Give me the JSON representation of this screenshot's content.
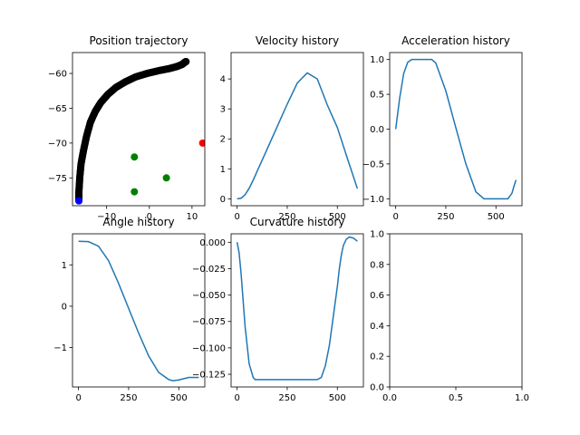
{
  "chart_data": [
    {
      "type": "scatter",
      "title": "Position trajectory",
      "xlim": [
        -18,
        13
      ],
      "ylim": [
        -79,
        -57
      ],
      "xticks": [
        -10,
        0,
        10
      ],
      "xtick_labels": [
        "−10",
        "0",
        "10"
      ],
      "yticks": [
        -75,
        -70,
        -65,
        -60
      ],
      "ytick_labels": [
        "−75",
        "−70",
        "−65",
        "−60"
      ],
      "series": [
        {
          "color": "#000000",
          "points": [
            [
              -16.5,
              -78.3
            ],
            [
              -16.5,
              -77
            ],
            [
              -16.3,
              -75
            ],
            [
              -16,
              -73
            ],
            [
              -15.4,
              -71
            ],
            [
              -14.7,
              -69
            ],
            [
              -13.8,
              -67
            ],
            [
              -12.7,
              -65.5
            ],
            [
              -11.4,
              -64.2
            ],
            [
              -9.7,
              -63
            ],
            [
              -7.8,
              -62
            ],
            [
              -5.6,
              -61.2
            ],
            [
              -3.2,
              -60.5
            ],
            [
              -0.5,
              -60
            ],
            [
              2.2,
              -59.6
            ],
            [
              4.7,
              -59.3
            ],
            [
              6.5,
              -59
            ],
            [
              7.7,
              -58.7
            ],
            [
              8.3,
              -58.4
            ],
            [
              8.6,
              -58.3
            ]
          ]
        },
        {
          "color": "#ff0000",
          "points": [
            [
              12.5,
              -70
            ]
          ]
        },
        {
          "color": "#008000",
          "points": [
            [
              -3.5,
              -72
            ],
            [
              -3.5,
              -77
            ],
            [
              4,
              -75
            ]
          ]
        },
        {
          "color": "#0000ff",
          "points": [
            [
              -16.5,
              -78.3
            ]
          ]
        }
      ]
    },
    {
      "type": "line",
      "title": "Velocity history",
      "xlim": [
        -30,
        630
      ],
      "ylim": [
        -0.23,
        4.88
      ],
      "xticks": [
        0,
        250,
        500
      ],
      "xtick_labels": [
        "0",
        "250",
        "500"
      ],
      "yticks": [
        0,
        1,
        2,
        3,
        4
      ],
      "ytick_labels": [
        "0",
        "1",
        "2",
        "3",
        "4"
      ],
      "x": [
        0,
        20,
        40,
        60,
        80,
        100,
        150,
        200,
        250,
        300,
        320,
        350,
        400,
        450,
        500,
        550,
        600
      ],
      "y": [
        0.0,
        0.02,
        0.14,
        0.35,
        0.62,
        0.92,
        1.66,
        2.41,
        3.16,
        3.86,
        4.0,
        4.2,
        4.0,
        3.13,
        2.38,
        1.35,
        0.34
      ]
    },
    {
      "type": "line",
      "title": "Acceleration history",
      "xlim": [
        -30,
        630
      ],
      "ylim": [
        -1.1,
        1.1
      ],
      "xticks": [
        0,
        250,
        500
      ],
      "xtick_labels": [
        "0",
        "250",
        "500"
      ],
      "yticks": [
        -1.0,
        -0.5,
        0.0,
        0.5,
        1.0
      ],
      "ytick_labels": [
        "−1.0",
        "−0.5",
        "0.0",
        "0.5",
        "1.0"
      ],
      "x": [
        0,
        20,
        40,
        60,
        80,
        100,
        150,
        180,
        200,
        250,
        300,
        350,
        400,
        440,
        480,
        520,
        560,
        580,
        590,
        600
      ],
      "y": [
        0.0,
        0.45,
        0.8,
        0.96,
        1.0,
        1.0,
        1.0,
        1.0,
        0.95,
        0.55,
        0.02,
        -0.5,
        -0.9,
        -1.0,
        -1.0,
        -1.0,
        -1.0,
        -0.92,
        -0.82,
        -0.73
      ]
    },
    {
      "type": "line",
      "title": "Angle history",
      "xlim": [
        -30,
        630
      ],
      "ylim": [
        -1.95,
        1.75
      ],
      "xticks": [
        0,
        250,
        500
      ],
      "xtick_labels": [
        "0",
        "250",
        "500"
      ],
      "yticks": [
        -1,
        0,
        1
      ],
      "ytick_labels": [
        "−1",
        "0",
        "1"
      ],
      "x": [
        0,
        50,
        100,
        150,
        200,
        250,
        300,
        350,
        400,
        450,
        470,
        500,
        550,
        600
      ],
      "y": [
        1.57,
        1.56,
        1.45,
        1.1,
        0.55,
        -0.05,
        -0.65,
        -1.2,
        -1.6,
        -1.77,
        -1.8,
        -1.78,
        -1.72,
        -1.72
      ]
    },
    {
      "type": "line",
      "title": "Curvature history",
      "xlim": [
        -30,
        630
      ],
      "ylim": [
        -0.137,
        0.008
      ],
      "xticks": [
        0,
        250,
        500
      ],
      "xtick_labels": [
        "0",
        "250",
        "500"
      ],
      "yticks": [
        -0.125,
        -0.1,
        -0.075,
        -0.05,
        -0.025,
        0.0
      ],
      "ytick_labels": [
        "−0.125",
        "−0.100",
        "−0.075",
        "−0.050",
        "−0.025",
        "0.000"
      ],
      "x": [
        0,
        10,
        20,
        40,
        60,
        80,
        90,
        100,
        200,
        300,
        400,
        420,
        440,
        460,
        480,
        500,
        510,
        520,
        530,
        545,
        560,
        580,
        600
      ],
      "y": [
        0.0,
        -0.01,
        -0.03,
        -0.08,
        -0.115,
        -0.128,
        -0.13,
        -0.13,
        -0.13,
        -0.13,
        -0.13,
        -0.128,
        -0.117,
        -0.098,
        -0.07,
        -0.042,
        -0.025,
        -0.012,
        -0.003,
        0.003,
        0.005,
        0.004,
        0.001
      ]
    },
    {
      "type": "line",
      "title": "",
      "xlim": [
        0,
        1
      ],
      "ylim": [
        0,
        1
      ],
      "xticks": [
        0,
        0.5,
        1
      ],
      "xtick_labels": [
        "0.0",
        "0.5",
        "1.0"
      ],
      "yticks": [
        0,
        0.2,
        0.4,
        0.6,
        0.8,
        1.0
      ],
      "ytick_labels": [
        "0.0",
        "0.2",
        "0.4",
        "0.6",
        "0.8",
        "1.0"
      ],
      "x": [],
      "y": []
    }
  ]
}
